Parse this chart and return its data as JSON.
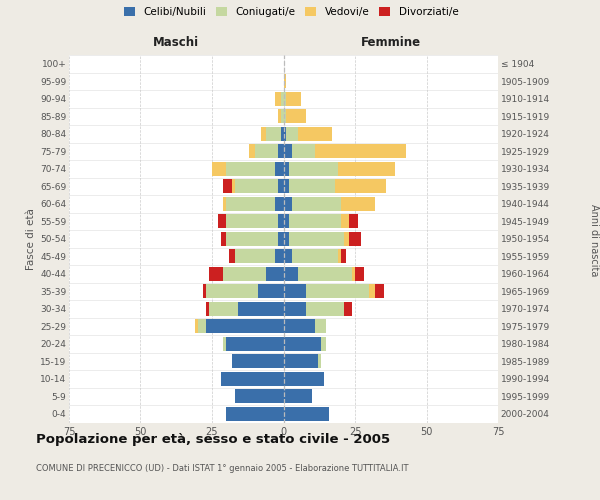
{
  "age_groups": [
    "0-4",
    "5-9",
    "10-14",
    "15-19",
    "20-24",
    "25-29",
    "30-34",
    "35-39",
    "40-44",
    "45-49",
    "50-54",
    "55-59",
    "60-64",
    "65-69",
    "70-74",
    "75-79",
    "80-84",
    "85-89",
    "90-94",
    "95-99",
    "100+"
  ],
  "birth_years": [
    "2000-2004",
    "1995-1999",
    "1990-1994",
    "1985-1989",
    "1980-1984",
    "1975-1979",
    "1970-1974",
    "1965-1969",
    "1960-1964",
    "1955-1959",
    "1950-1954",
    "1945-1949",
    "1940-1944",
    "1935-1939",
    "1930-1934",
    "1925-1929",
    "1920-1924",
    "1915-1919",
    "1910-1914",
    "1905-1909",
    "≤ 1904"
  ],
  "maschi": {
    "celibi": [
      20,
      17,
      22,
      18,
      20,
      27,
      16,
      9,
      6,
      3,
      2,
      2,
      3,
      2,
      3,
      2,
      1,
      0,
      0,
      0,
      0
    ],
    "coniugati": [
      0,
      0,
      0,
      0,
      1,
      3,
      10,
      18,
      15,
      14,
      18,
      18,
      17,
      15,
      17,
      8,
      5,
      1,
      1,
      0,
      0
    ],
    "vedovi": [
      0,
      0,
      0,
      0,
      0,
      1,
      0,
      0,
      0,
      0,
      0,
      0,
      1,
      1,
      5,
      2,
      2,
      1,
      2,
      0,
      0
    ],
    "divorziati": [
      0,
      0,
      0,
      0,
      0,
      0,
      1,
      1,
      5,
      2,
      2,
      3,
      0,
      3,
      0,
      0,
      0,
      0,
      0,
      0,
      0
    ]
  },
  "femmine": {
    "nubili": [
      16,
      10,
      14,
      12,
      13,
      11,
      8,
      8,
      5,
      3,
      2,
      2,
      3,
      2,
      2,
      3,
      1,
      0,
      0,
      0,
      0
    ],
    "coniugate": [
      0,
      0,
      0,
      1,
      2,
      4,
      13,
      22,
      19,
      16,
      19,
      18,
      17,
      16,
      17,
      8,
      4,
      1,
      1,
      0,
      0
    ],
    "vedove": [
      0,
      0,
      0,
      0,
      0,
      0,
      0,
      2,
      1,
      1,
      2,
      3,
      12,
      18,
      20,
      32,
      12,
      7,
      5,
      1,
      0
    ],
    "divorziate": [
      0,
      0,
      0,
      0,
      0,
      0,
      3,
      3,
      3,
      2,
      4,
      3,
      0,
      0,
      0,
      0,
      0,
      0,
      0,
      0,
      0
    ]
  },
  "colors": {
    "celibi": "#3a6faa",
    "coniugati": "#c5d8a0",
    "vedovi": "#f5c862",
    "divorziati": "#cc2020"
  },
  "title": "Popolazione per età, sesso e stato civile - 2005",
  "subtitle": "COMUNE DI PRECENICCO (UD) - Dati ISTAT 1° gennaio 2005 - Elaborazione TUTTITALIA.IT",
  "xlim": 75,
  "bg_color": "#eeebe4",
  "plot_bg": "#ffffff"
}
